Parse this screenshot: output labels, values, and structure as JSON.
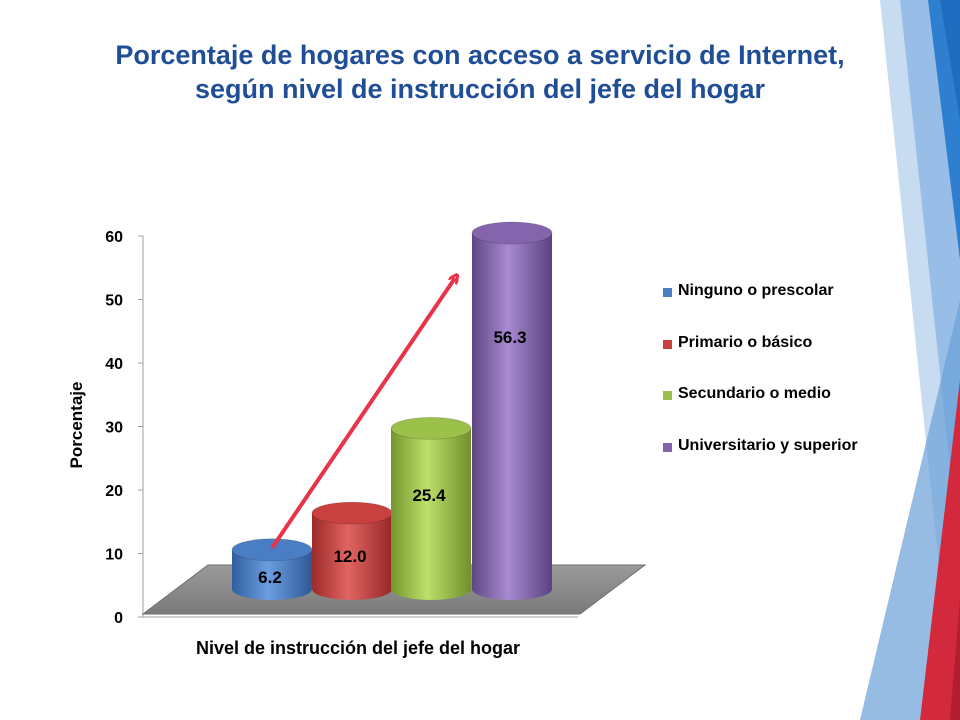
{
  "title": {
    "line1": "Porcentaje de hogares con acceso a servicio de Internet,",
    "line2": "según nivel de instrucción del jefe del hogar"
  },
  "chart_data": {
    "type": "bar",
    "style": "3d-cylinder",
    "categories": [
      "Ninguno o prescolar",
      "Primario o básico",
      "Secundario o medio",
      "Universitario y superior"
    ],
    "values": [
      6.2,
      12.0,
      25.4,
      56.3
    ],
    "data_labels": [
      "6.2",
      "12.0",
      "25.4",
      "56.3"
    ],
    "xlabel": "Nivel de instrucción del jefe del hogar",
    "ylabel": "Porcentaje",
    "ylim": [
      0,
      60
    ],
    "yticks": [
      "0",
      "10",
      "20",
      "30",
      "40",
      "50",
      "60"
    ],
    "colors": [
      "#4a7ec4",
      "#c9413f",
      "#9bc14a",
      "#8564ae"
    ],
    "legend_position": "right",
    "grid": false,
    "annotation": "red arrow rising from first to last bar"
  }
}
